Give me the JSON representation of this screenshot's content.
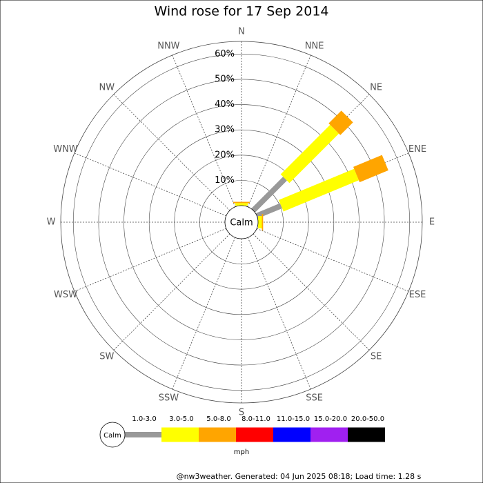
{
  "chart_data": {
    "type": "wind_rose",
    "title": "Wind rose for 17 Sep 2014",
    "calm_label": "Calm",
    "categories": [
      "N",
      "NNE",
      "NE",
      "ENE",
      "E",
      "ESE",
      "SE",
      "SSE",
      "S",
      "SSW",
      "SW",
      "WSW",
      "W",
      "WNW",
      "NW",
      "NNW"
    ],
    "ylim": [
      0,
      65
    ],
    "yticks": [
      {
        "value": 10,
        "label": "10%"
      },
      {
        "value": 20,
        "label": "20%"
      },
      {
        "value": 30,
        "label": "30%"
      },
      {
        "value": 40,
        "label": "40%"
      },
      {
        "value": 50,
        "label": "50%"
      },
      {
        "value": 60,
        "label": "60%"
      }
    ],
    "series": [
      {
        "name": "1.0-3.0",
        "color": "#999999",
        "values": [
          0,
          0,
          17.8,
          10.4,
          0,
          0,
          0,
          0,
          0,
          0,
          0,
          0,
          0,
          0,
          0,
          0
        ]
      },
      {
        "name": "3.0-5.0",
        "color": "#ffff00",
        "values": [
          1,
          0,
          27.7,
          32.3,
          1.5,
          0,
          0,
          0,
          0,
          0,
          0,
          0,
          0,
          0,
          0,
          0
        ]
      },
      {
        "name": "5.0-8.0",
        "color": "#ffa500",
        "values": [
          0.5,
          0,
          7.1,
          12.3,
          0.5,
          0,
          0,
          0,
          0,
          0,
          0,
          0,
          0,
          0,
          0,
          0
        ]
      },
      {
        "name": "8.0-11.0",
        "color": "#ff0000",
        "values": [
          0,
          0,
          0,
          0,
          0,
          0,
          0,
          0,
          0,
          0,
          0,
          0,
          0,
          0,
          0,
          0
        ]
      },
      {
        "name": "11.0-15.0",
        "color": "#0000ff",
        "values": [
          0,
          0,
          0,
          0,
          0,
          0,
          0,
          0,
          0,
          0,
          0,
          0,
          0,
          0,
          0,
          0
        ]
      },
      {
        "name": "15.0-20.0",
        "color": "#a020f0",
        "values": [
          0,
          0,
          0,
          0,
          0,
          0,
          0,
          0,
          0,
          0,
          0,
          0,
          0,
          0,
          0,
          0
        ]
      },
      {
        "name": "20.0-50.0",
        "color": "#000000",
        "values": [
          0,
          0,
          0,
          0,
          0,
          0,
          0,
          0,
          0,
          0,
          0,
          0,
          0,
          0,
          0,
          0
        ]
      }
    ],
    "legend_unit": "mph",
    "footer": "@nw3weather. Generated: 04 Jun 2025 08:18; Load time: 1.28 s"
  }
}
